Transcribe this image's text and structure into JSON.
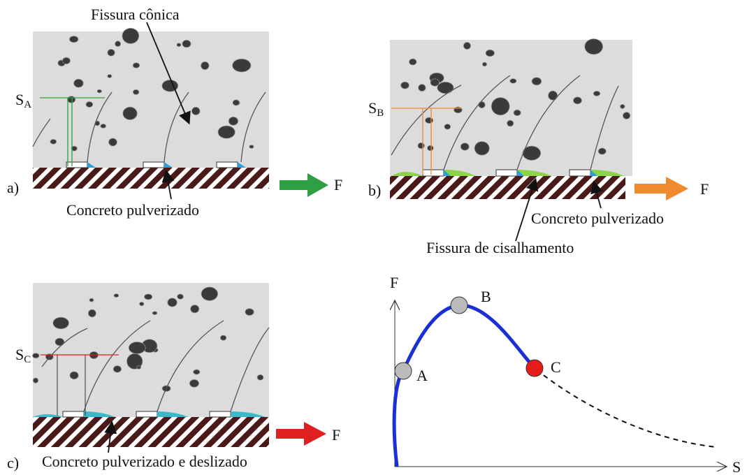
{
  "panels": [
    {
      "label": "a)",
      "slip_symbol": "S",
      "slip_subscript": "A",
      "force": "F",
      "top_note": "Fissura cônica",
      "bottom_note": "Concreto pulverizado"
    },
    {
      "label": "b)",
      "slip_symbol": "S",
      "slip_subscript": "B",
      "force": "F",
      "bottom_note": "Concreto pulverizado",
      "extra_note": "Fissura de cisalhamento"
    },
    {
      "label": "c)",
      "slip_symbol": "S",
      "slip_subscript": "C",
      "force": "F",
      "bottom_note": "Concreto pulverizado e deslizado"
    }
  ],
  "graph": {
    "y_axis": "F",
    "x_axis": "S",
    "points": [
      "A",
      "B",
      "C"
    ]
  }
}
